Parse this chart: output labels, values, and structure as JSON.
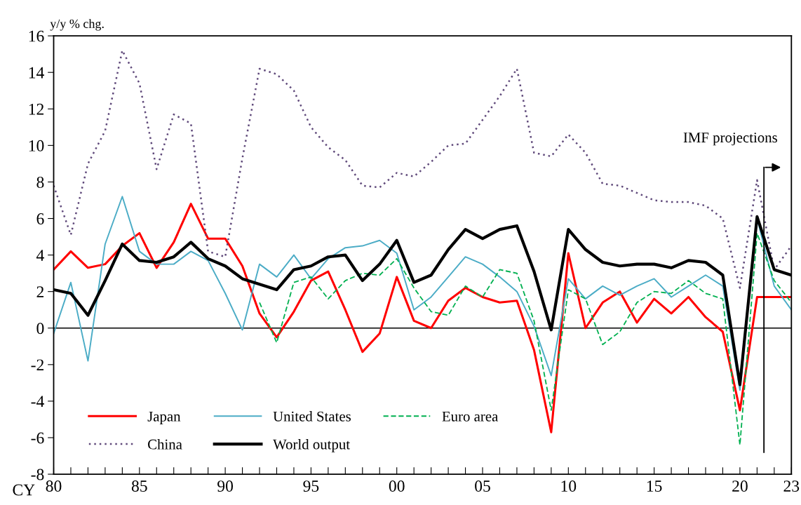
{
  "chart_data": {
    "type": "line",
    "ylabel": "y/y % chg.",
    "xlabel": "CY",
    "x": [
      1980,
      1981,
      1982,
      1983,
      1984,
      1985,
      1986,
      1987,
      1988,
      1989,
      1990,
      1991,
      1992,
      1993,
      1994,
      1995,
      1996,
      1997,
      1998,
      1999,
      2000,
      2001,
      2002,
      2003,
      2004,
      2005,
      2006,
      2007,
      2008,
      2009,
      2010,
      2011,
      2012,
      2013,
      2014,
      2015,
      2016,
      2017,
      2018,
      2019,
      2020,
      2021,
      2022,
      2023
    ],
    "series": [
      {
        "name": "Japan",
        "color": "#ff0000",
        "line_style": "solid",
        "values": [
          3.2,
          4.2,
          3.3,
          3.5,
          4.5,
          5.2,
          3.3,
          4.7,
          6.8,
          4.9,
          4.9,
          3.4,
          0.8,
          -0.5,
          0.9,
          2.6,
          3.1,
          1.0,
          -1.3,
          -0.3,
          2.8,
          0.4,
          0.0,
          1.5,
          2.2,
          1.7,
          1.4,
          1.5,
          -1.2,
          -5.7,
          4.1,
          0.0,
          1.4,
          2.0,
          0.3,
          1.6,
          0.8,
          1.7,
          0.6,
          -0.2,
          -4.5,
          1.7,
          1.7,
          1.7
        ]
      },
      {
        "name": "United States",
        "color": "#4bacc6",
        "line_style": "solid",
        "values": [
          -0.3,
          2.5,
          -1.8,
          4.6,
          7.2,
          4.2,
          3.5,
          3.5,
          4.2,
          3.7,
          1.9,
          -0.1,
          3.5,
          2.8,
          4.0,
          2.7,
          3.8,
          4.4,
          4.5,
          4.8,
          4.1,
          1.0,
          1.7,
          2.8,
          3.9,
          3.5,
          2.8,
          2.0,
          0.1,
          -2.6,
          2.7,
          1.6,
          2.3,
          1.8,
          2.3,
          2.7,
          1.7,
          2.3,
          2.9,
          2.3,
          -3.4,
          6.0,
          2.3,
          1.0
        ]
      },
      {
        "name": "Euro area",
        "color": "#00b050",
        "line_style": "dashed",
        "values": [
          null,
          null,
          null,
          null,
          null,
          null,
          null,
          null,
          null,
          null,
          null,
          null,
          1.4,
          -0.8,
          2.5,
          2.8,
          1.6,
          2.6,
          3.0,
          2.9,
          3.8,
          2.2,
          0.9,
          0.7,
          2.3,
          1.7,
          3.2,
          3.0,
          0.4,
          -4.5,
          2.1,
          1.6,
          -0.9,
          -0.2,
          1.4,
          2.0,
          1.9,
          2.6,
          1.9,
          1.6,
          -6.4,
          5.2,
          2.6,
          1.4
        ]
      },
      {
        "name": "China",
        "color": "#604a7b",
        "line_style": "dotted",
        "values": [
          7.8,
          5.1,
          9.0,
          10.8,
          15.2,
          13.4,
          8.7,
          11.7,
          11.2,
          4.2,
          3.9,
          9.3,
          14.2,
          13.9,
          13.0,
          11.0,
          9.9,
          9.2,
          7.8,
          7.7,
          8.5,
          8.3,
          9.1,
          10.0,
          10.1,
          11.4,
          12.7,
          14.2,
          9.6,
          9.4,
          10.6,
          9.6,
          7.9,
          7.8,
          7.4,
          7.0,
          6.9,
          6.9,
          6.7,
          6.0,
          2.2,
          8.1,
          3.2,
          4.5
        ]
      },
      {
        "name": "World output",
        "color": "#000000",
        "line_style": "solid",
        "values": [
          2.1,
          1.9,
          0.7,
          2.6,
          4.6,
          3.7,
          3.6,
          3.9,
          4.7,
          3.8,
          3.4,
          2.7,
          2.4,
          2.1,
          3.2,
          3.4,
          3.9,
          4.0,
          2.6,
          3.5,
          4.8,
          2.5,
          2.9,
          4.3,
          5.4,
          4.9,
          5.4,
          5.6,
          3.1,
          -0.1,
          5.4,
          4.3,
          3.6,
          3.4,
          3.5,
          3.5,
          3.3,
          3.7,
          3.6,
          2.9,
          -3.1,
          6.1,
          3.2,
          2.9
        ]
      }
    ],
    "xlim": [
      1980,
      2023
    ],
    "xticks": [
      {
        "value": 1980,
        "label": "80"
      },
      {
        "value": 1981,
        "label": null
      },
      {
        "value": 1982,
        "label": null
      },
      {
        "value": 1983,
        "label": null
      },
      {
        "value": 1984,
        "label": null
      },
      {
        "value": 1985,
        "label": "85"
      },
      {
        "value": 1986,
        "label": null
      },
      {
        "value": 1987,
        "label": null
      },
      {
        "value": 1988,
        "label": null
      },
      {
        "value": 1989,
        "label": null
      },
      {
        "value": 1990,
        "label": "90"
      },
      {
        "value": 1991,
        "label": null
      },
      {
        "value": 1992,
        "label": null
      },
      {
        "value": 1993,
        "label": null
      },
      {
        "value": 1994,
        "label": null
      },
      {
        "value": 1995,
        "label": "95"
      },
      {
        "value": 1996,
        "label": null
      },
      {
        "value": 1997,
        "label": null
      },
      {
        "value": 1998,
        "label": null
      },
      {
        "value": 1999,
        "label": null
      },
      {
        "value": 2000,
        "label": "00"
      },
      {
        "value": 2001,
        "label": null
      },
      {
        "value": 2002,
        "label": null
      },
      {
        "value": 2003,
        "label": null
      },
      {
        "value": 2004,
        "label": null
      },
      {
        "value": 2005,
        "label": "05"
      },
      {
        "value": 2006,
        "label": null
      },
      {
        "value": 2007,
        "label": null
      },
      {
        "value": 2008,
        "label": null
      },
      {
        "value": 2009,
        "label": null
      },
      {
        "value": 2010,
        "label": "10"
      },
      {
        "value": 2011,
        "label": null
      },
      {
        "value": 2012,
        "label": null
      },
      {
        "value": 2013,
        "label": null
      },
      {
        "value": 2014,
        "label": null
      },
      {
        "value": 2015,
        "label": "15"
      },
      {
        "value": 2016,
        "label": null
      },
      {
        "value": 2017,
        "label": null
      },
      {
        "value": 2018,
        "label": null
      },
      {
        "value": 2019,
        "label": null
      },
      {
        "value": 2020,
        "label": "20"
      },
      {
        "value": 2021,
        "label": null
      },
      {
        "value": 2022,
        "label": null
      },
      {
        "value": 2023,
        "label": "23"
      }
    ],
    "ylim": [
      -8,
      16
    ],
    "yticks": [
      -8,
      -6,
      -4,
      -2,
      0,
      2,
      4,
      6,
      8,
      10,
      12,
      14,
      16
    ],
    "ref_lines": [
      {
        "axis": "y",
        "value": 0,
        "color": "#000000"
      },
      {
        "axis": "x",
        "value": 2021.4,
        "label": "IMF projections",
        "color": "#000000"
      }
    ],
    "grid": false,
    "legend": "bottom left",
    "marker": "none"
  }
}
